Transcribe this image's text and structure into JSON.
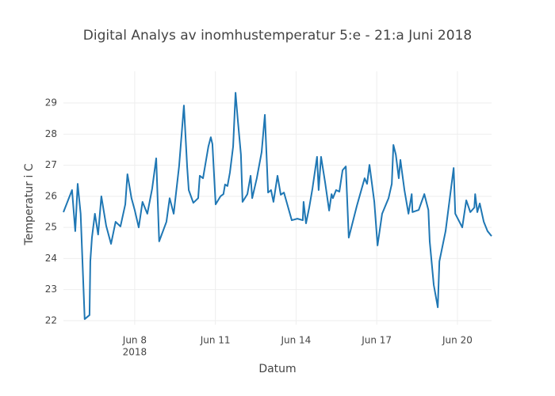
{
  "chart_data": {
    "type": "line",
    "title": "Digital Analys av inomhustemperatur 5:e - 21:a Juni 2018",
    "x_label": "Datum",
    "y_label": "Temperatur i C",
    "x_year": "2018",
    "xlim": [
      5.35,
      21.27
    ],
    "ylim": [
      21.87,
      30.02
    ],
    "xticks": [
      {
        "value": 8,
        "label": "Jun 8"
      },
      {
        "value": 11,
        "label": "Jun 11"
      },
      {
        "value": 14,
        "label": "Jun 14"
      },
      {
        "value": 17,
        "label": "Jun 17"
      },
      {
        "value": 20,
        "label": "Jun 20"
      }
    ],
    "yticks": [
      22,
      23,
      24,
      25,
      26,
      27,
      28,
      29
    ],
    "grid": true,
    "x": [
      5.35,
      5.67,
      5.79,
      5.88,
      5.99,
      6.14,
      6.32,
      6.35,
      6.41,
      6.52,
      6.64,
      6.76,
      6.94,
      7.12,
      7.29,
      7.47,
      7.65,
      7.73,
      7.88,
      8.0,
      8.15,
      8.29,
      8.47,
      8.65,
      8.8,
      8.91,
      9.18,
      9.3,
      9.45,
      9.65,
      9.83,
      9.95,
      10.01,
      10.18,
      10.36,
      10.42,
      10.54,
      10.74,
      10.83,
      10.89,
      11.01,
      11.19,
      11.3,
      11.36,
      11.45,
      11.54,
      11.66,
      11.75,
      11.83,
      11.95,
      12.01,
      12.19,
      12.31,
      12.37,
      12.54,
      12.72,
      12.84,
      12.96,
      13.07,
      13.16,
      13.31,
      13.43,
      13.55,
      13.69,
      13.84,
      14.05,
      14.25,
      14.28,
      14.37,
      14.49,
      14.61,
      14.78,
      14.84,
      14.93,
      15.08,
      15.23,
      15.32,
      15.37,
      15.49,
      15.61,
      15.73,
      15.85,
      15.96,
      16.26,
      16.55,
      16.64,
      16.73,
      16.91,
      17.03,
      17.2,
      17.44,
      17.56,
      17.62,
      17.71,
      17.82,
      17.88,
      18.03,
      18.18,
      18.3,
      18.33,
      18.56,
      18.77,
      18.92,
      18.97,
      19.12,
      19.27,
      19.33,
      19.56,
      19.86,
      19.92,
      20.18,
      20.33,
      20.48,
      20.63,
      20.66,
      20.74,
      20.83,
      20.98,
      21.12,
      21.27
    ],
    "series": [
      {
        "color": "#1f77b4",
        "values": [
          25.49,
          26.2,
          24.88,
          26.4,
          25.44,
          22.05,
          22.18,
          23.91,
          24.67,
          25.44,
          24.77,
          26.0,
          25.05,
          24.47,
          25.18,
          25.03,
          25.74,
          26.71,
          25.94,
          25.56,
          25.0,
          25.82,
          25.44,
          26.25,
          27.22,
          24.55,
          25.18,
          25.94,
          25.44,
          26.96,
          28.92,
          26.96,
          26.2,
          25.79,
          25.94,
          26.66,
          26.58,
          27.6,
          27.9,
          27.68,
          25.74,
          26.0,
          26.07,
          26.38,
          26.33,
          26.76,
          27.6,
          29.33,
          28.49,
          27.34,
          25.82,
          26.07,
          26.66,
          25.94,
          26.58,
          27.42,
          28.62,
          26.12,
          26.2,
          25.82,
          26.66,
          26.05,
          26.12,
          25.69,
          25.23,
          25.28,
          25.23,
          25.82,
          25.13,
          25.64,
          26.25,
          27.27,
          26.2,
          27.27,
          26.45,
          25.54,
          26.07,
          25.94,
          26.2,
          26.15,
          26.84,
          26.96,
          24.67,
          25.69,
          26.58,
          26.4,
          27.01,
          25.82,
          24.42,
          25.44,
          25.94,
          26.4,
          27.65,
          27.34,
          26.58,
          27.17,
          26.2,
          25.44,
          26.07,
          25.49,
          25.56,
          26.07,
          25.56,
          24.55,
          23.15,
          22.43,
          23.91,
          24.88,
          26.91,
          25.44,
          25.0,
          25.87,
          25.49,
          25.64,
          26.07,
          25.49,
          25.77,
          25.18,
          24.88,
          24.72
        ]
      }
    ]
  }
}
